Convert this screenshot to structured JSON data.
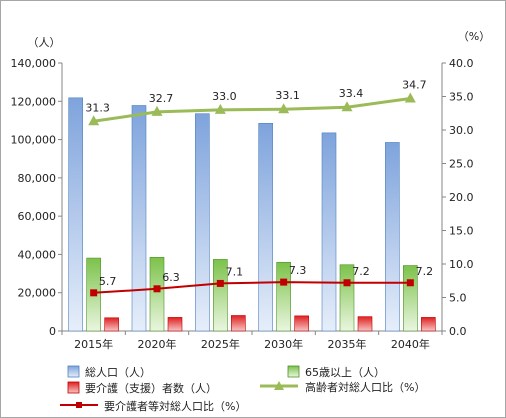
{
  "chart_data": {
    "type": "bar",
    "categories": [
      "2015年",
      "2020年",
      "2025年",
      "2030年",
      "2035年",
      "2040年"
    ],
    "series": [
      {
        "name": "総人口（人）",
        "kind": "bar",
        "axis": "left",
        "color": "#8fb1e0",
        "values": [
          121800,
          117800,
          113500,
          108500,
          103500,
          98500
        ]
      },
      {
        "name": "65歳以上（人）",
        "kind": "bar",
        "axis": "left",
        "color": "#8fce5c",
        "values": [
          38100,
          38500,
          37400,
          35900,
          34600,
          34200
        ]
      },
      {
        "name": "要介護（支援）者数（人）",
        "kind": "bar",
        "axis": "left",
        "color": "#e53838",
        "values": [
          6900,
          7100,
          8100,
          7900,
          7500,
          7100
        ]
      },
      {
        "name": "高齢者対総人口比（%）",
        "kind": "line",
        "axis": "right",
        "color": "#9bbb59",
        "marker": "triangle",
        "values": [
          31.3,
          32.7,
          33.0,
          33.1,
          33.4,
          34.7
        ]
      },
      {
        "name": "要介護者等対総人口比（%）",
        "kind": "line",
        "axis": "right",
        "color": "#c00000",
        "marker": "square",
        "values": [
          5.7,
          6.3,
          7.1,
          7.3,
          7.2,
          7.2
        ]
      }
    ],
    "left_axis": {
      "unit": "（人）",
      "ylim": [
        0,
        140000
      ],
      "ticks": [
        "0",
        "20,000",
        "40,000",
        "60,000",
        "80,000",
        "100,000",
        "120,000",
        "140,000"
      ]
    },
    "right_axis": {
      "unit": "（%）",
      "ylim": [
        0,
        40
      ],
      "ticks": [
        "0.0",
        "5.0",
        "10.0",
        "15.0",
        "20.0",
        "25.0",
        "30.0",
        "35.0",
        "40.0"
      ]
    },
    "data_labels": {
      "elderly_ratio": [
        "31.3",
        "32.7",
        "33.0",
        "33.1",
        "33.4",
        "34.7"
      ],
      "care_ratio": [
        "5.7",
        "6.3",
        "7.1",
        "7.3",
        "7.2",
        "7.2"
      ]
    },
    "grid": false,
    "legend_position": "bottom"
  }
}
